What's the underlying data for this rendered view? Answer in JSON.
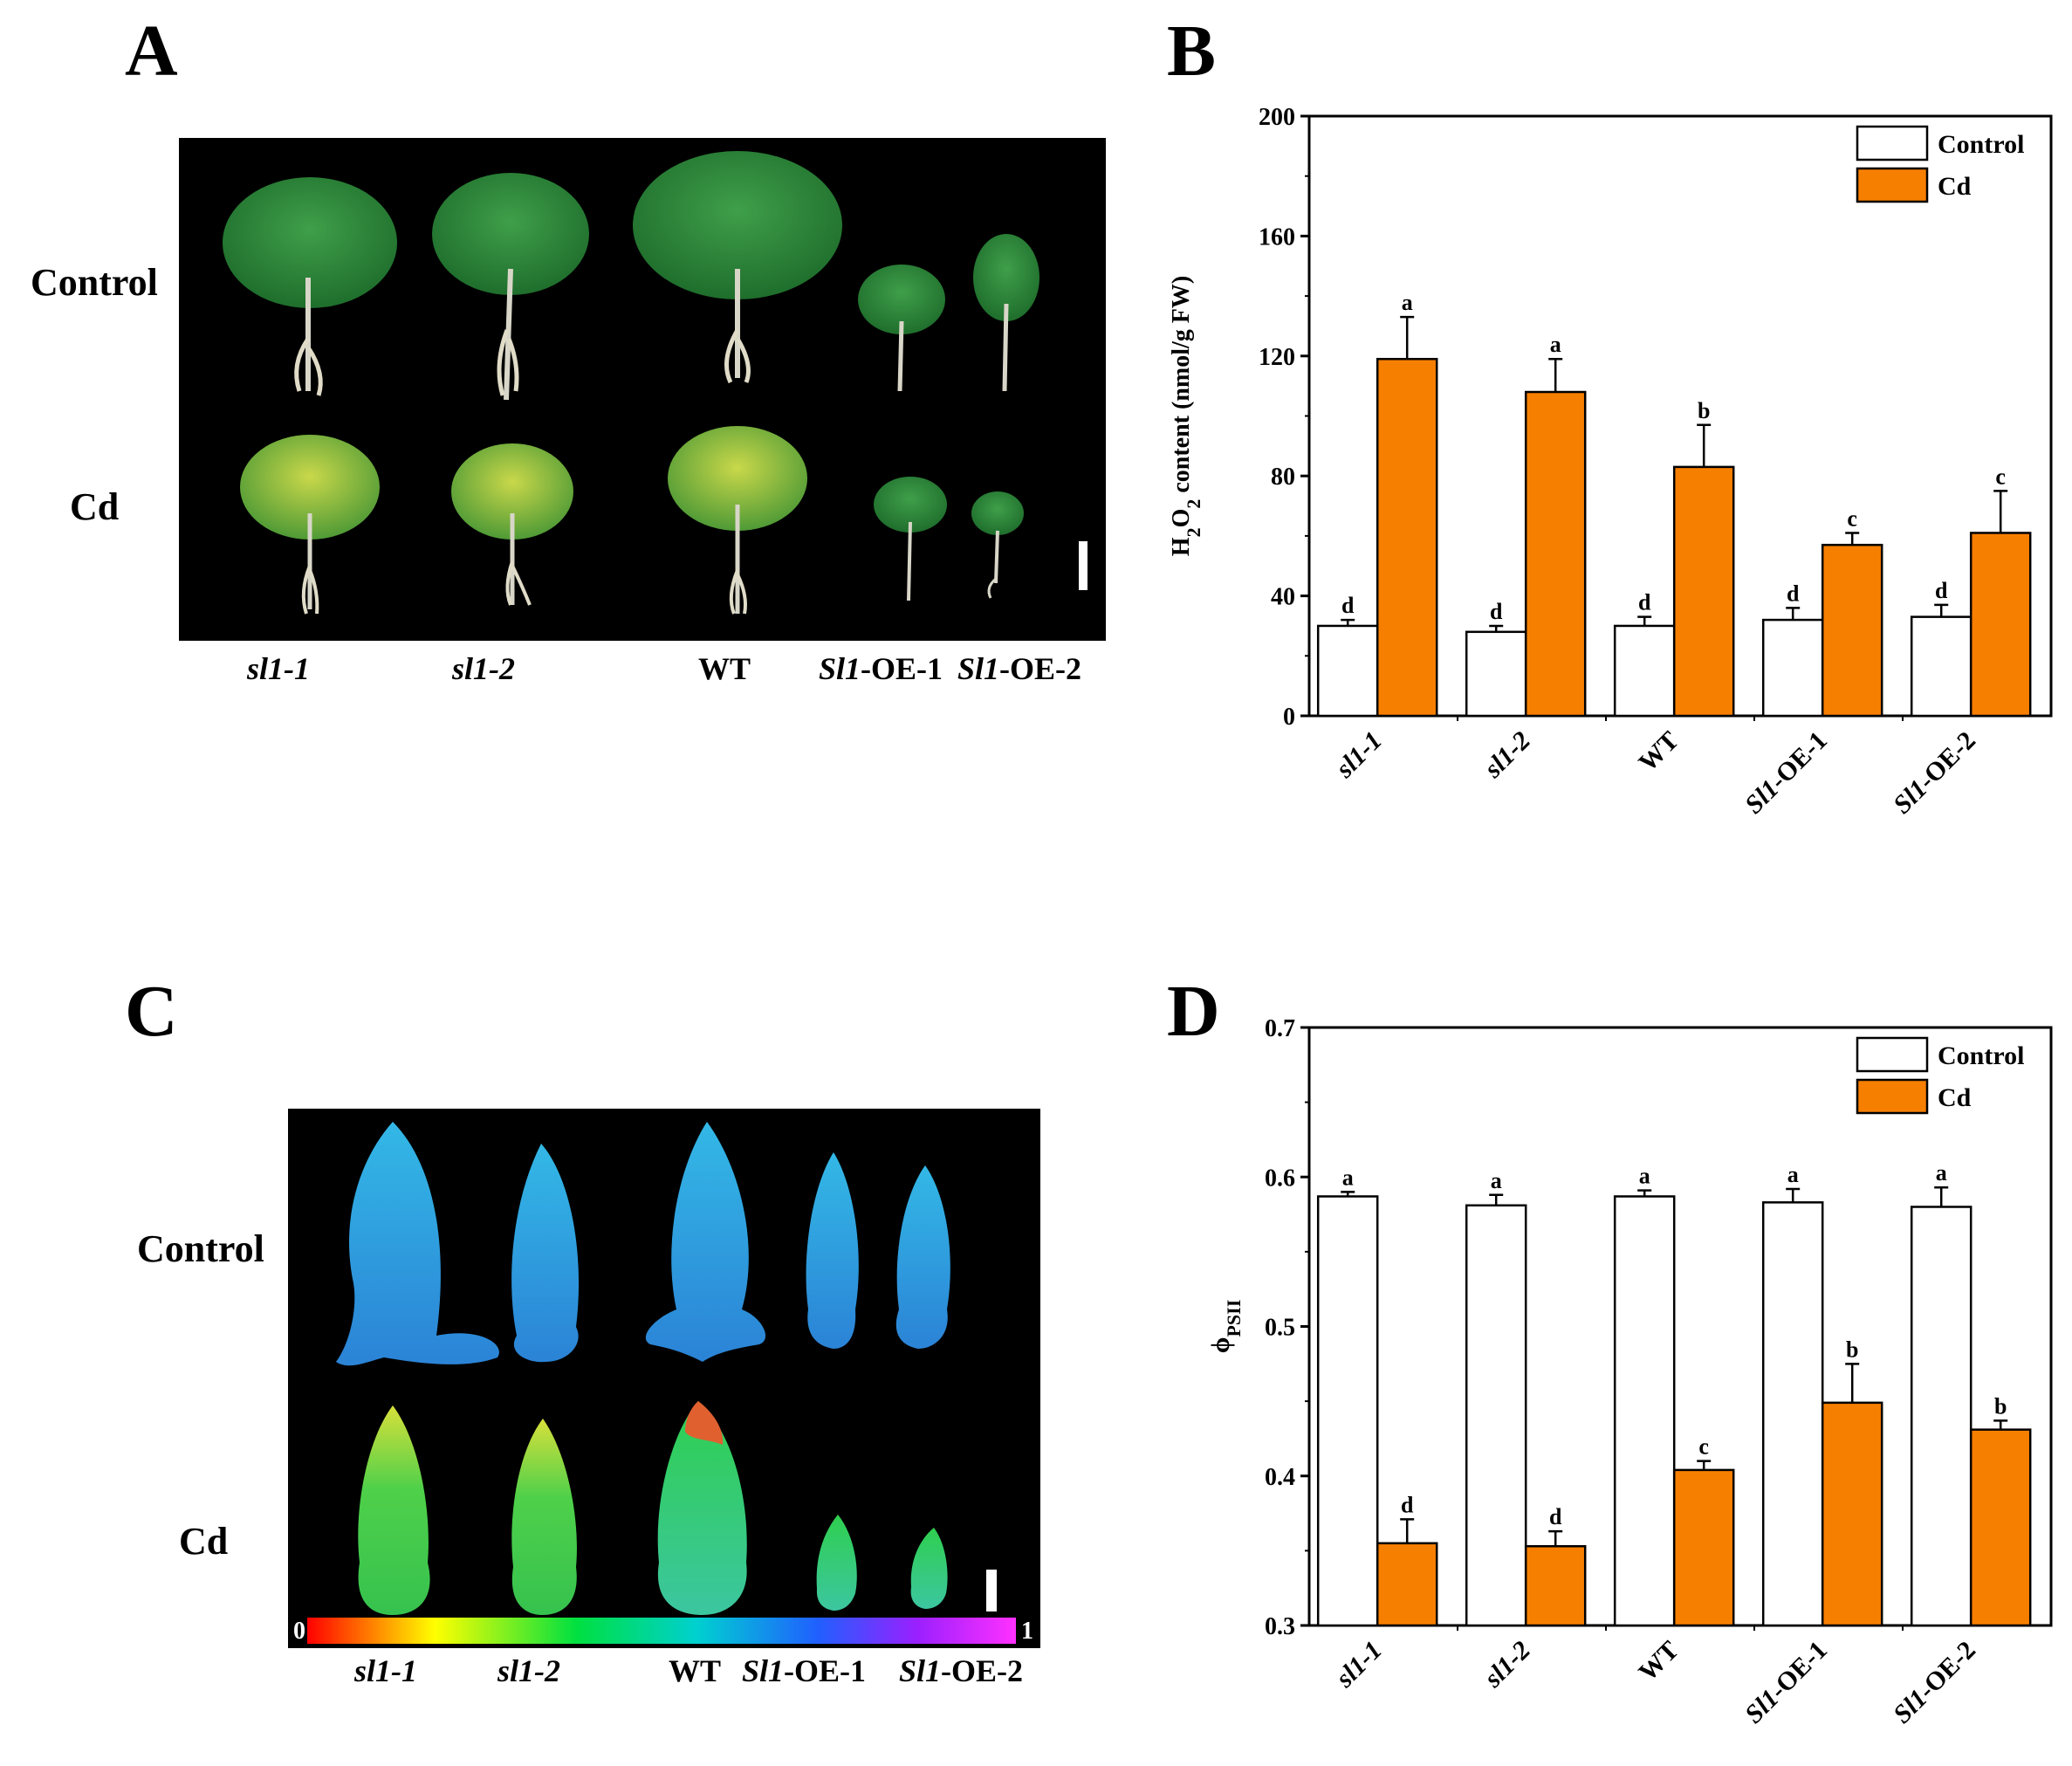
{
  "panels": {
    "a": {
      "letter": "A",
      "rows": [
        "Control",
        "Cd"
      ],
      "genotypes": [
        {
          "italic": "sl1-1",
          "plain": ""
        },
        {
          "italic": "sl1-2",
          "plain": ""
        },
        {
          "italic": "",
          "plain": "WT"
        },
        {
          "italic": "Sl1",
          "plain": "-OE-1"
        },
        {
          "italic": "Sl1",
          "plain": "-OE-2"
        }
      ]
    },
    "c": {
      "letter": "C",
      "rows": [
        "Control",
        "Cd"
      ],
      "colorbar_min": "0",
      "colorbar_max": "1",
      "genotypes": [
        {
          "italic": "sl1-1",
          "plain": ""
        },
        {
          "italic": "sl1-2",
          "plain": ""
        },
        {
          "italic": "",
          "plain": "WT"
        },
        {
          "italic": "Sl1",
          "plain": "-OE-1"
        },
        {
          "italic": "Sl1",
          "plain": "-OE-2"
        }
      ]
    }
  },
  "colors": {
    "control": "#ffffff",
    "cd": "#f77f00",
    "photo_bg": "#000000"
  },
  "chart_data": [
    {
      "panel": "B",
      "type": "bar",
      "title": "",
      "xlabel": "",
      "ylabel": "H2O2 content (nmol/g FW)",
      "ylabel_parts": [
        "H",
        "2",
        "O",
        "2",
        " content (nmol/g FW)"
      ],
      "ylim": [
        0,
        200
      ],
      "yticks": [
        0,
        40,
        80,
        120,
        160,
        200
      ],
      "ytick_labels": [
        "0",
        "40",
        "80",
        "120",
        "160",
        "200"
      ],
      "categories": [
        {
          "italic": "sl1-1",
          "plain": ""
        },
        {
          "italic": "sl1-2",
          "plain": ""
        },
        {
          "italic": "",
          "plain": "WT"
        },
        {
          "italic": "Sl1",
          "plain": "-OE-1"
        },
        {
          "italic": "Sl1",
          "plain": "-OE-2"
        }
      ],
      "legend_position": "top-right",
      "series": [
        {
          "name": "Control",
          "color": "#ffffff",
          "values": [
            30,
            28,
            30,
            32,
            33
          ],
          "errors": [
            2,
            2,
            3,
            4,
            4
          ],
          "letters": [
            "d",
            "d",
            "d",
            "d",
            "d"
          ]
        },
        {
          "name": "Cd",
          "color": "#f77f00",
          "values": [
            119,
            108,
            83,
            57,
            61
          ],
          "errors": [
            14,
            11,
            14,
            4,
            14
          ],
          "letters": [
            "a",
            "a",
            "b",
            "c",
            "c"
          ]
        }
      ]
    },
    {
      "panel": "D",
      "type": "bar",
      "title": "",
      "xlabel": "",
      "ylabel": "ϕPSII",
      "ylabel_parts": [
        "ϕ",
        "PSII"
      ],
      "ylim": [
        0.3,
        0.7
      ],
      "yticks": [
        0.3,
        0.4,
        0.5,
        0.6,
        0.7
      ],
      "ytick_labels": [
        "0.3",
        "0.4",
        "0.5",
        "0.6",
        "0.7"
      ],
      "categories": [
        {
          "italic": "sl1-1",
          "plain": ""
        },
        {
          "italic": "sl1-2",
          "plain": ""
        },
        {
          "italic": "",
          "plain": "WT"
        },
        {
          "italic": "Sl1",
          "plain": "-OE-1"
        },
        {
          "italic": "Sl1",
          "plain": "-OE-2"
        }
      ],
      "legend_position": "top-right",
      "series": [
        {
          "name": "Control",
          "color": "#ffffff",
          "values": [
            0.587,
            0.581,
            0.587,
            0.583,
            0.58
          ],
          "errors": [
            0.003,
            0.007,
            0.004,
            0.009,
            0.013
          ],
          "letters": [
            "a",
            "a",
            "a",
            "a",
            "a"
          ]
        },
        {
          "name": "Cd",
          "color": "#f77f00",
          "values": [
            0.355,
            0.353,
            0.404,
            0.449,
            0.431
          ],
          "errors": [
            0.016,
            0.01,
            0.006,
            0.026,
            0.006
          ],
          "letters": [
            "d",
            "d",
            "c",
            "b",
            "b"
          ]
        }
      ]
    }
  ]
}
